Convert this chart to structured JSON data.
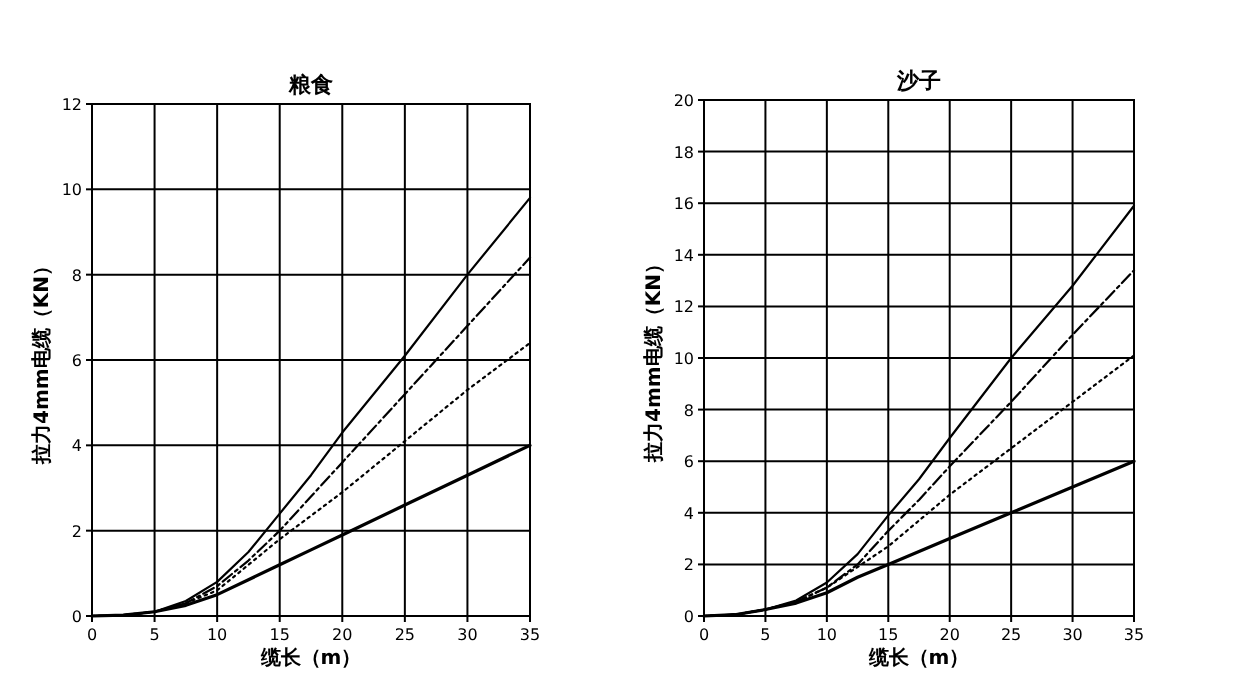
{
  "chart_data": [
    {
      "type": "line",
      "title": "粮食",
      "xlabel": "缆长（m）",
      "ylabel": "拉力4mm电缆（KN）",
      "x": [
        0,
        2.5,
        5,
        7.5,
        10,
        12.5,
        15,
        17.5,
        20,
        25,
        30,
        35
      ],
      "xlim": [
        0,
        35
      ],
      "xticks": [
        0,
        5,
        10,
        15,
        20,
        25,
        30,
        35
      ],
      "ylim": [
        0,
        12
      ],
      "yticks": [
        0,
        2,
        4,
        6,
        8,
        10,
        12
      ],
      "grid": true,
      "marker": "none",
      "series": [
        {
          "color": "#000000",
          "line_style": "solid",
          "values": [
            0,
            0.02,
            0.1,
            0.35,
            0.8,
            1.5,
            2.4,
            3.3,
            4.3,
            6.1,
            8.0,
            9.8
          ]
        },
        {
          "color": "#000000",
          "line_style": "dashed",
          "values": [
            0,
            0.02,
            0.1,
            0.3,
            0.7,
            1.3,
            2.0,
            2.8,
            3.6,
            5.2,
            6.8,
            8.4
          ]
        },
        {
          "color": "#000000",
          "line_style": "dotted",
          "values": [
            0,
            0.02,
            0.1,
            0.3,
            0.6,
            1.2,
            1.8,
            2.35,
            2.9,
            4.1,
            5.3,
            6.4
          ]
        },
        {
          "color": "#000000",
          "line_style": "solid",
          "values": [
            0,
            0.02,
            0.1,
            0.25,
            0.5,
            0.85,
            1.2,
            1.55,
            1.9,
            2.6,
            3.3,
            4.0
          ]
        }
      ]
    },
    {
      "type": "line",
      "title": "沙子",
      "xlabel": "缆长（m）",
      "ylabel": "拉力4mm电缆（KN）",
      "x": [
        0,
        2.5,
        5,
        7.5,
        10,
        12.5,
        15,
        17.5,
        20,
        25,
        30,
        35
      ],
      "xlim": [
        0,
        35
      ],
      "xticks": [
        0,
        5,
        10,
        15,
        20,
        25,
        30,
        35
      ],
      "ylim": [
        0,
        20
      ],
      "yticks": [
        0,
        2,
        4,
        6,
        8,
        10,
        12,
        14,
        16,
        18,
        20
      ],
      "grid": true,
      "marker": "none",
      "series": [
        {
          "color": "#000000",
          "line_style": "solid",
          "values": [
            0,
            0.05,
            0.25,
            0.6,
            1.3,
            2.4,
            3.9,
            5.3,
            6.9,
            10.0,
            12.8,
            15.9
          ]
        },
        {
          "color": "#000000",
          "line_style": "dashed",
          "values": [
            0,
            0.05,
            0.25,
            0.55,
            1.1,
            2.0,
            3.3,
            4.5,
            5.8,
            8.3,
            10.9,
            13.4
          ]
        },
        {
          "color": "#000000",
          "line_style": "dotted",
          "values": [
            0,
            0.05,
            0.25,
            0.55,
            1.1,
            1.9,
            2.7,
            3.7,
            4.7,
            6.5,
            8.3,
            10.1
          ]
        },
        {
          "color": "#000000",
          "line_style": "solid",
          "values": [
            0,
            0.05,
            0.25,
            0.5,
            0.9,
            1.5,
            2.0,
            2.5,
            3.0,
            4.0,
            5.0,
            6.0
          ]
        }
      ]
    }
  ]
}
